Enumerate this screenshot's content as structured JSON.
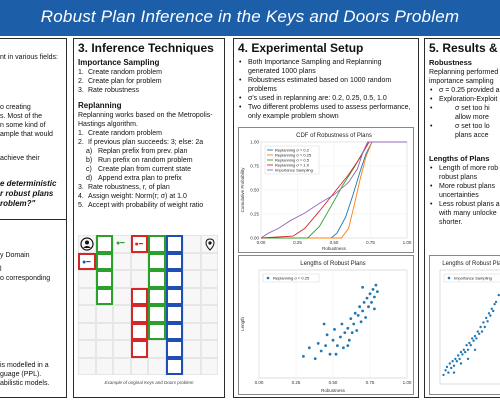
{
  "banner": {
    "title": "Robust Plan Inference in the Keys and Doors Problem"
  },
  "left_panel": {
    "frag_top": "nt in various fields:",
    "frag_1": "o creating",
    "frag_2": "s. Most of the",
    "frag_3": "n some kind of",
    "frag_4": "ample that would",
    "frag_5": "achieve their",
    "frag_q1": "e deterministic",
    "frag_q2": "r robust plans",
    "frag_q3": "roblem?\"",
    "frag_b1": "y Domain",
    "frag_b2": "l",
    "frag_b3": "o corresponding",
    "frag_b4": "is modelled in a",
    "frag_b5": "guage (PPL).",
    "frag_b6": "abilistic models."
  },
  "section3": {
    "title": "3. Inference Techniques",
    "is_heading": "Importance Sampling",
    "is_steps": [
      "Create random problem",
      "Create plan for problem",
      "Rate robustness"
    ],
    "rp_heading": "Replanning",
    "rp_intro": "Replanning works based on the Metropolis-Hastings algorithm.",
    "rp_steps": [
      {
        "n": "1.",
        "text": "Create random problem"
      },
      {
        "n": "2.",
        "text": "If previous plan succeeds: 3; else: 2a"
      },
      {
        "n": "a)",
        "text": "Replan prefix from prev. plan",
        "sub": true
      },
      {
        "n": "b)",
        "text": "Run prefix on random problem",
        "sub": true
      },
      {
        "n": "c)",
        "text": "Create plan from current state",
        "sub": true
      },
      {
        "n": "d)",
        "text": "Append extra plan to prefix",
        "sub": true
      },
      {
        "n": "3.",
        "text": "Rate robustness, r, of plan"
      },
      {
        "n": "4.",
        "text": "Assign weight: Norm(r; σ) at 1.0"
      },
      {
        "n": "5.",
        "text": "Accept with probability of weight ratio"
      }
    ],
    "caption": "Example of original Keys and Doors problem"
  },
  "section4": {
    "title": "4. Experimental Setup",
    "bullets": [
      "Both Importance Sampling and Replanning generated 1000 plans",
      "Robustness estimated based on 1000 random problems",
      "σ's used in replanning are: 0.2, 0.25, 0.5, 1.0",
      "Two different problems used to assess performance, only example problem shown"
    ]
  },
  "section5": {
    "title": "5. Results & D",
    "sub1": "Robustness",
    "p1": "Replanning performed",
    "p2": "importance sampling",
    "b1": "σ = 0.25 provided a",
    "b2": "Exploration-Exploit",
    "b3": "σ set too hi",
    "b3b": "allow more",
    "b4": "σ set too lo",
    "b4b": "plans acce",
    "sub2": "Lengths of Plans",
    "c1": "Length of more rob",
    "c1b": "robust plans",
    "c2": "More robust plans",
    "c2b": "uncertainties",
    "c3": "Less robust plans a",
    "c3b": "with many unlocke",
    "c3c": "shorter."
  },
  "colors": {
    "banner": "#1c5fa8",
    "blue": "#1f77b4",
    "orange": "#ff7f0e",
    "green": "#2ca02c",
    "red": "#d62728",
    "purple": "#9467bd"
  },
  "chart_data": [
    {
      "type": "line",
      "title": "CDF of Robustness of Plans",
      "xlabel": "Robustness",
      "ylabel": "Cumulative Probability",
      "xlim": [
        0.0,
        1.0
      ],
      "ylim": [
        0.0,
        1.0
      ],
      "xticks": [
        "0.00",
        "0.25",
        "0.50",
        "0.75",
        "1.00"
      ],
      "yticks": [
        "0.00",
        "0.25",
        "0.50",
        "0.75",
        "1.00"
      ],
      "legend": "top-left",
      "series": [
        {
          "name": "Replanning σ = 0.2",
          "color": "#1f77b4",
          "points": [
            [
              0.0,
              0.0
            ],
            [
              0.48,
              0.0
            ],
            [
              0.52,
              0.05
            ],
            [
              0.58,
              0.22
            ],
            [
              0.63,
              0.45
            ],
            [
              0.68,
              0.7
            ],
            [
              0.72,
              0.88
            ],
            [
              0.76,
              1.0
            ],
            [
              1.0,
              1.0
            ]
          ]
        },
        {
          "name": "Replanning σ = 0.25",
          "color": "#ff7f0e",
          "points": [
            [
              0.0,
              0.0
            ],
            [
              0.55,
              0.0
            ],
            [
              0.6,
              0.1
            ],
            [
              0.64,
              0.35
            ],
            [
              0.68,
              0.62
            ],
            [
              0.72,
              0.85
            ],
            [
              0.76,
              1.0
            ],
            [
              1.0,
              1.0
            ]
          ]
        },
        {
          "name": "Replanning σ = 0.5",
          "color": "#2ca02c",
          "points": [
            [
              0.0,
              0.0
            ],
            [
              0.32,
              0.0
            ],
            [
              0.4,
              0.12
            ],
            [
              0.48,
              0.33
            ],
            [
              0.56,
              0.55
            ],
            [
              0.64,
              0.74
            ],
            [
              0.7,
              0.9
            ],
            [
              0.74,
              1.0
            ],
            [
              1.0,
              1.0
            ]
          ]
        },
        {
          "name": "Replanning σ = 1.0",
          "color": "#d62728",
          "points": [
            [
              0.0,
              0.0
            ],
            [
              0.22,
              0.02
            ],
            [
              0.3,
              0.1
            ],
            [
              0.4,
              0.28
            ],
            [
              0.5,
              0.47
            ],
            [
              0.6,
              0.66
            ],
            [
              0.68,
              0.84
            ],
            [
              0.74,
              1.0
            ],
            [
              1.0,
              1.0
            ]
          ]
        },
        {
          "name": "Importance Sampling",
          "color": "#9467bd",
          "points": [
            [
              0.0,
              0.0
            ],
            [
              0.05,
              0.05
            ],
            [
              0.12,
              0.1
            ],
            [
              0.2,
              0.18
            ],
            [
              0.3,
              0.26
            ],
            [
              0.4,
              0.36
            ],
            [
              0.5,
              0.45
            ],
            [
              0.6,
              0.58
            ],
            [
              0.66,
              0.72
            ],
            [
              0.7,
              0.9
            ],
            [
              0.73,
              1.0
            ],
            [
              1.0,
              1.0
            ]
          ]
        }
      ]
    },
    {
      "type": "scatter",
      "title": "Lengths of Robust Plans",
      "xlabel": "Robustness",
      "ylabel": "Length",
      "xlim": [
        0.0,
        1.0
      ],
      "xticks": [
        "0.00",
        "0.25",
        "0.50",
        "0.75",
        "1.00"
      ],
      "legend": "top-left",
      "series": [
        {
          "name": "Replanning σ = 0.25",
          "color": "#1f77b4",
          "points": [
            [
              0.3,
              0.2
            ],
            [
              0.34,
              0.28
            ],
            [
              0.38,
              0.18
            ],
            [
              0.4,
              0.32
            ],
            [
              0.42,
              0.25
            ],
            [
              0.45,
              0.3
            ],
            [
              0.46,
              0.4
            ],
            [
              0.48,
              0.22
            ],
            [
              0.5,
              0.35
            ],
            [
              0.51,
              0.45
            ],
            [
              0.53,
              0.3
            ],
            [
              0.55,
              0.38
            ],
            [
              0.56,
              0.5
            ],
            [
              0.58,
              0.42
            ],
            [
              0.6,
              0.46
            ],
            [
              0.61,
              0.35
            ],
            [
              0.62,
              0.55
            ],
            [
              0.64,
              0.5
            ],
            [
              0.65,
              0.6
            ],
            [
              0.66,
              0.44
            ],
            [
              0.67,
              0.58
            ],
            [
              0.68,
              0.66
            ],
            [
              0.69,
              0.52
            ],
            [
              0.7,
              0.62
            ],
            [
              0.71,
              0.7
            ],
            [
              0.72,
              0.56
            ],
            [
              0.73,
              0.74
            ],
            [
              0.74,
              0.66
            ],
            [
              0.75,
              0.78
            ],
            [
              0.76,
              0.7
            ],
            [
              0.77,
              0.82
            ],
            [
              0.78,
              0.75
            ],
            [
              0.78,
              0.64
            ],
            [
              0.79,
              0.86
            ],
            [
              0.8,
              0.8
            ],
            [
              0.6,
              0.3
            ],
            [
              0.52,
              0.22
            ],
            [
              0.44,
              0.5
            ],
            [
              0.57,
              0.28
            ],
            [
              0.63,
              0.42
            ],
            [
              0.7,
              0.84
            ]
          ]
        }
      ]
    },
    {
      "type": "scatter",
      "title": "Lengths of Robust Plans",
      "xlabel": "",
      "ylabel": "",
      "legend": "top-left",
      "series": [
        {
          "name": "Importance Sampling",
          "color": "#1f77b4",
          "points": [
            [
              0.05,
              0.08
            ],
            [
              0.08,
              0.12
            ],
            [
              0.1,
              0.15
            ],
            [
              0.12,
              0.1
            ],
            [
              0.14,
              0.18
            ],
            [
              0.16,
              0.14
            ],
            [
              0.18,
              0.2
            ],
            [
              0.2,
              0.16
            ],
            [
              0.22,
              0.22
            ],
            [
              0.24,
              0.2
            ],
            [
              0.26,
              0.25
            ],
            [
              0.28,
              0.22
            ],
            [
              0.3,
              0.28
            ],
            [
              0.32,
              0.26
            ],
            [
              0.34,
              0.3
            ],
            [
              0.36,
              0.28
            ],
            [
              0.38,
              0.34
            ],
            [
              0.4,
              0.3
            ],
            [
              0.42,
              0.36
            ],
            [
              0.44,
              0.34
            ],
            [
              0.46,
              0.4
            ],
            [
              0.48,
              0.38
            ],
            [
              0.5,
              0.42
            ],
            [
              0.52,
              0.4
            ],
            [
              0.54,
              0.46
            ],
            [
              0.56,
              0.44
            ],
            [
              0.58,
              0.5
            ],
            [
              0.6,
              0.46
            ],
            [
              0.62,
              0.54
            ],
            [
              0.64,
              0.5
            ],
            [
              0.66,
              0.58
            ],
            [
              0.68,
              0.55
            ],
            [
              0.7,
              0.62
            ],
            [
              0.72,
              0.6
            ],
            [
              0.74,
              0.66
            ],
            [
              0.76,
              0.64
            ],
            [
              0.78,
              0.7
            ],
            [
              0.8,
              0.72
            ],
            [
              0.84,
              0.78
            ],
            [
              0.88,
              0.82
            ],
            [
              0.92,
              0.86
            ],
            [
              0.96,
              0.9
            ],
            [
              0.2,
              0.1
            ],
            [
              0.3,
              0.18
            ],
            [
              0.4,
              0.22
            ],
            [
              0.5,
              0.3
            ]
          ]
        }
      ]
    }
  ]
}
